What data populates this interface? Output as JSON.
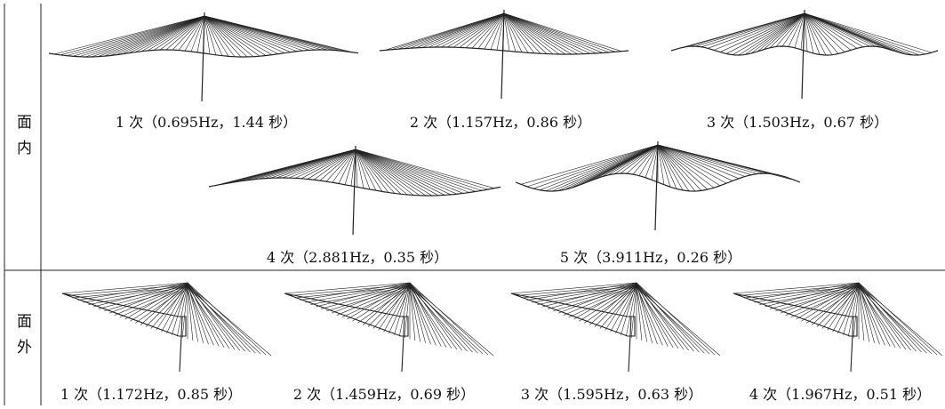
{
  "rows": [
    {
      "label": "面内",
      "modes": [
        "1 次（0.695Hz，1.44 秒）",
        "2 次（1.157Hz，0.86 秒）",
        "3 次（1.503Hz，0.67 秒）",
        "4 次（2.881Hz，0.35 秒）",
        "5 次（3.911Hz，0.26 秒）"
      ]
    },
    {
      "label": "面外",
      "modes": [
        "1 次（1.172Hz，0.85 秒）",
        "2 次（1.459Hz，0.69 秒）",
        "3 次（1.595Hz，0.63 秒）",
        "4 次（1.967Hz，0.51 秒）"
      ]
    }
  ]
}
